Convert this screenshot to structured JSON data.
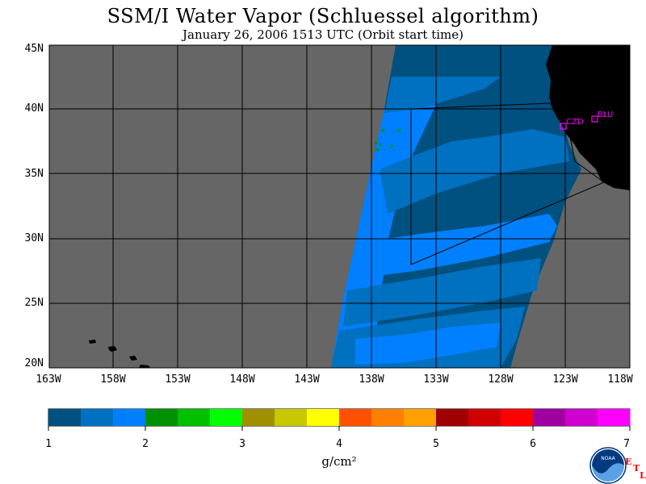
{
  "header": {
    "title": "SSM/I Water Vapor (Schluessel algorithm)",
    "subtitle": "January 26, 2006  1513 UTC  (Orbit start time)"
  },
  "map": {
    "lat_labels": [
      "45N",
      "40N",
      "35N",
      "30N",
      "25N",
      "20N"
    ],
    "lon_labels": [
      "163W",
      "158W",
      "153W",
      "148W",
      "143W",
      "138W",
      "133W",
      "128W",
      "123W",
      "118W"
    ],
    "stations": [
      {
        "id": "CZD"
      },
      {
        "id": "BLU"
      }
    ],
    "colors": {
      "no_data": "#666666",
      "land": "#000000",
      "grid": "#000000",
      "station": "#ff00ff"
    }
  },
  "colorbar": {
    "colors": [
      "#005080",
      "#0070c0",
      "#0080ff",
      "#009000",
      "#00c000",
      "#00ff00",
      "#a09000",
      "#c8c800",
      "#ffff00",
      "#ff5000",
      "#ff8000",
      "#ffa000",
      "#a00000",
      "#d00000",
      "#ff0000",
      "#a000a0",
      "#d000d0",
      "#ff00ff"
    ],
    "ticks": [
      "1",
      "2",
      "3",
      "4",
      "5",
      "6",
      "7"
    ],
    "unit": "g/cm²"
  },
  "logo": {
    "name": "noaa-logo",
    "text": "NOAA",
    "etl": [
      "E",
      "T",
      "L"
    ]
  }
}
